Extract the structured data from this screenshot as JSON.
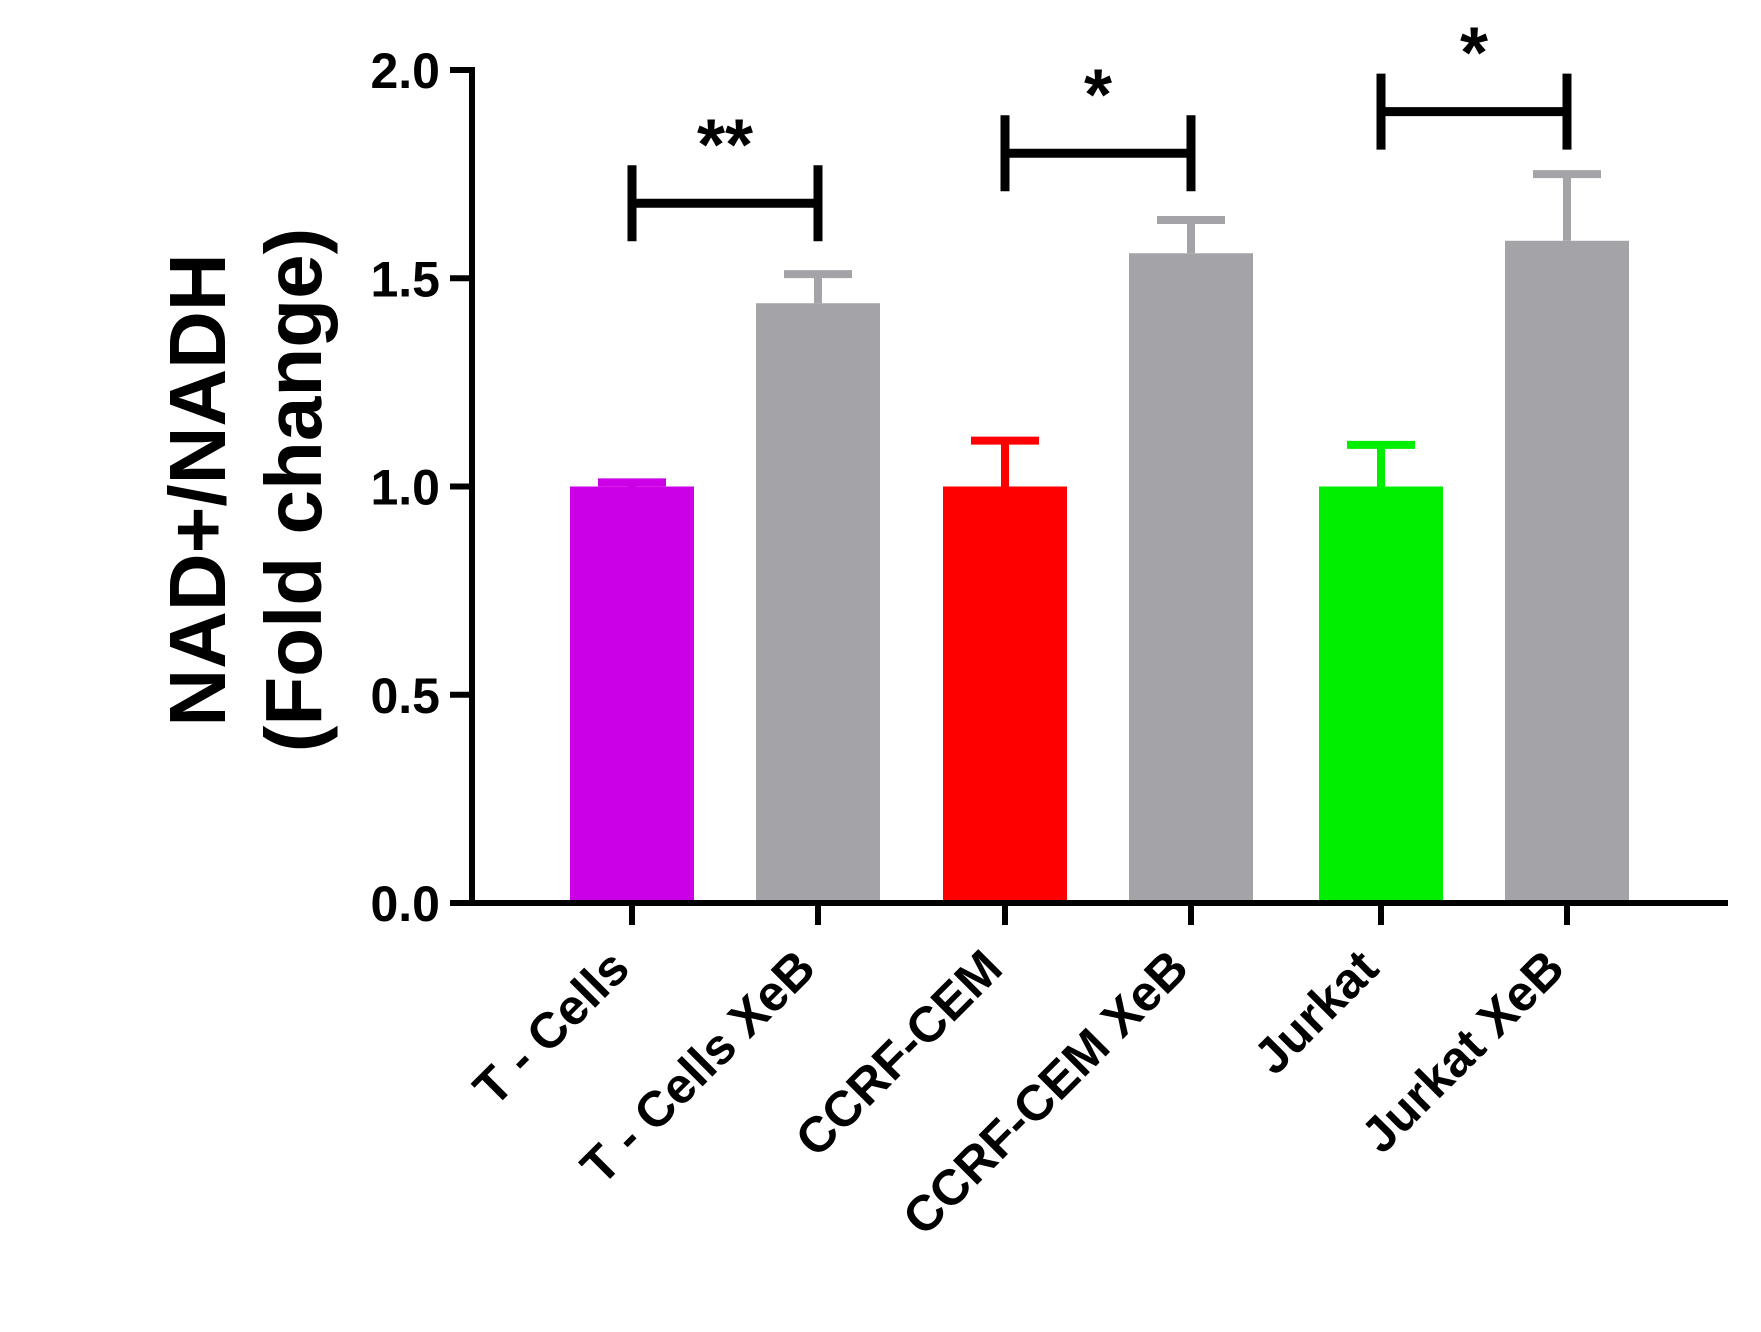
{
  "chart_data": {
    "type": "bar",
    "title": "",
    "xlabel": "",
    "ylabel_lines": [
      "NAD+/NADH",
      "(Fold change)"
    ],
    "ylim": [
      0.0,
      2.0
    ],
    "yticks": [
      "0.0",
      "0.5",
      "1.0",
      "1.5",
      "2.0"
    ],
    "categories": [
      "T - Cells",
      "T - Cells XeB",
      "CCRF-CEM",
      "CCRF-CEM XeB",
      "Jurkat",
      "Jurkat XeB"
    ],
    "values": [
      1.0,
      1.44,
      1.0,
      1.56,
      1.0,
      1.59
    ],
    "errors": [
      0.01,
      0.07,
      0.11,
      0.08,
      0.1,
      0.16
    ],
    "colors": [
      "#cc00e6",
      "#a3a3a8",
      "#ff0000",
      "#a3a3a8",
      "#00ee00",
      "#a3a3a8"
    ],
    "significance": [
      {
        "from": 0,
        "to": 1,
        "label": "**",
        "y": 1.68
      },
      {
        "from": 2,
        "to": 3,
        "label": "*",
        "y": 1.8
      },
      {
        "from": 4,
        "to": 5,
        "label": "*",
        "y": 1.9
      }
    ]
  }
}
